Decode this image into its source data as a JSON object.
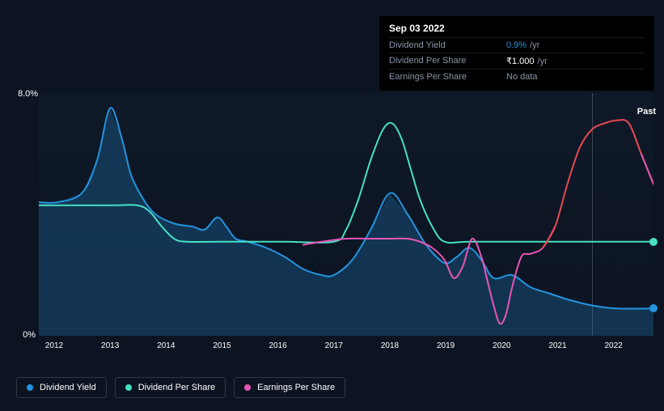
{
  "chart": {
    "type": "line",
    "background_color": "#0d1421",
    "grid_color": "#1c2a3a",
    "past_label": "Past",
    "y_axis": {
      "max_label": "8.0%",
      "min_label": "0%",
      "ylim": [
        0,
        8
      ],
      "label_fontsize": 11,
      "label_color": "#ffffff"
    },
    "x_axis": {
      "ticks": [
        "2012",
        "2013",
        "2014",
        "2015",
        "2016",
        "2017",
        "2018",
        "2019",
        "2020",
        "2021",
        "2022"
      ],
      "positions": [
        2.5,
        11.6,
        20.7,
        29.8,
        38.9,
        48.0,
        57.1,
        66.2,
        75.3,
        84.4,
        93.5
      ],
      "label_fontsize": 10,
      "label_color": "#ffffff"
    },
    "series": [
      {
        "name": "Dividend Yield",
        "color": "#2394df",
        "fill_color": "rgba(35,148,223,0.25)",
        "line_width": 2,
        "has_area": true,
        "points": [
          [
            0,
            4.4
          ],
          [
            3,
            4.4
          ],
          [
            7,
            4.7
          ],
          [
            9.5,
            5.8
          ],
          [
            11.6,
            7.5
          ],
          [
            13.5,
            6.5
          ],
          [
            15,
            5.3
          ],
          [
            17,
            4.5
          ],
          [
            19,
            4.0
          ],
          [
            22,
            3.7
          ],
          [
            25,
            3.6
          ],
          [
            27,
            3.5
          ],
          [
            29,
            3.9
          ],
          [
            30.5,
            3.6
          ],
          [
            32,
            3.2
          ],
          [
            34,
            3.1
          ],
          [
            37,
            2.9
          ],
          [
            40,
            2.6
          ],
          [
            43,
            2.2
          ],
          [
            46,
            2.0
          ],
          [
            48,
            2.0
          ],
          [
            51,
            2.5
          ],
          [
            54,
            3.5
          ],
          [
            57.1,
            4.7
          ],
          [
            60,
            4.0
          ],
          [
            63,
            3.0
          ],
          [
            66,
            2.4
          ],
          [
            68,
            2.6
          ],
          [
            70,
            2.9
          ],
          [
            72,
            2.5
          ],
          [
            74,
            1.9
          ],
          [
            77,
            2.0
          ],
          [
            80,
            1.6
          ],
          [
            83,
            1.4
          ],
          [
            86,
            1.2
          ],
          [
            90,
            1.0
          ],
          [
            94,
            0.9
          ],
          [
            100,
            0.9
          ]
        ],
        "terminal_dot": true
      },
      {
        "name": "Dividend Per Share",
        "color": "#46e0c4",
        "line_width": 2,
        "has_area": false,
        "points": [
          [
            0,
            4.3
          ],
          [
            6,
            4.3
          ],
          [
            12,
            4.3
          ],
          [
            16,
            4.3
          ],
          [
            18,
            4.1
          ],
          [
            20,
            3.6
          ],
          [
            22,
            3.2
          ],
          [
            24,
            3.1
          ],
          [
            30,
            3.1
          ],
          [
            40,
            3.1
          ],
          [
            48,
            3.1
          ],
          [
            50,
            3.5
          ],
          [
            52,
            4.5
          ],
          [
            54,
            5.8
          ],
          [
            56,
            6.8
          ],
          [
            57.5,
            7.0
          ],
          [
            59,
            6.5
          ],
          [
            60.5,
            5.5
          ],
          [
            62,
            4.5
          ],
          [
            64,
            3.6
          ],
          [
            66,
            3.1
          ],
          [
            70,
            3.1
          ],
          [
            80,
            3.1
          ],
          [
            90,
            3.1
          ],
          [
            100,
            3.1
          ]
        ],
        "terminal_dot": true
      },
      {
        "name": "Earnings Per Share",
        "color_segments": [
          {
            "color": "#e855b5",
            "from": 0,
            "to": 21
          },
          {
            "color": "#e84855",
            "from": 20,
            "to": 29
          },
          {
            "color": "#e855b5",
            "from": 28,
            "to": 40
          }
        ],
        "line_width": 2,
        "has_area": false,
        "points": [
          [
            43,
            3.0
          ],
          [
            46,
            3.1
          ],
          [
            50,
            3.2
          ],
          [
            54,
            3.2
          ],
          [
            57,
            3.2
          ],
          [
            60,
            3.2
          ],
          [
            62,
            3.1
          ],
          [
            64,
            2.9
          ],
          [
            66,
            2.5
          ],
          [
            67.5,
            1.9
          ],
          [
            69,
            2.3
          ],
          [
            70.5,
            3.2
          ],
          [
            72,
            2.6
          ],
          [
            73,
            1.8
          ],
          [
            74,
            1.0
          ],
          [
            75,
            0.4
          ],
          [
            76,
            0.7
          ],
          [
            77,
            1.6
          ],
          [
            78.5,
            2.6
          ],
          [
            80,
            2.7
          ],
          [
            82,
            2.9
          ],
          [
            84,
            3.6
          ],
          [
            86,
            5.0
          ],
          [
            88,
            6.2
          ],
          [
            90,
            6.8
          ],
          [
            92,
            7.0
          ],
          [
            94,
            7.1
          ],
          [
            96,
            7.0
          ],
          [
            98,
            6.0
          ],
          [
            100,
            5.0
          ]
        ]
      }
    ],
    "divider_position": 90
  },
  "tooltip": {
    "date": "Sep 03 2022",
    "rows": [
      {
        "label": "Dividend Yield",
        "value": "0.9%",
        "unit": "/yr",
        "value_color": "blue"
      },
      {
        "label": "Dividend Per Share",
        "value": "₹1.000",
        "unit": "/yr",
        "value_color": "white"
      },
      {
        "label": "Earnings Per Share",
        "value": "No data",
        "unit": "",
        "value_color": "gray"
      }
    ]
  },
  "legend": {
    "items": [
      {
        "label": "Dividend Yield",
        "color": "#2394df"
      },
      {
        "label": "Dividend Per Share",
        "color": "#46e0c4"
      },
      {
        "label": "Earnings Per Share",
        "color": "#e855b5"
      }
    ]
  }
}
